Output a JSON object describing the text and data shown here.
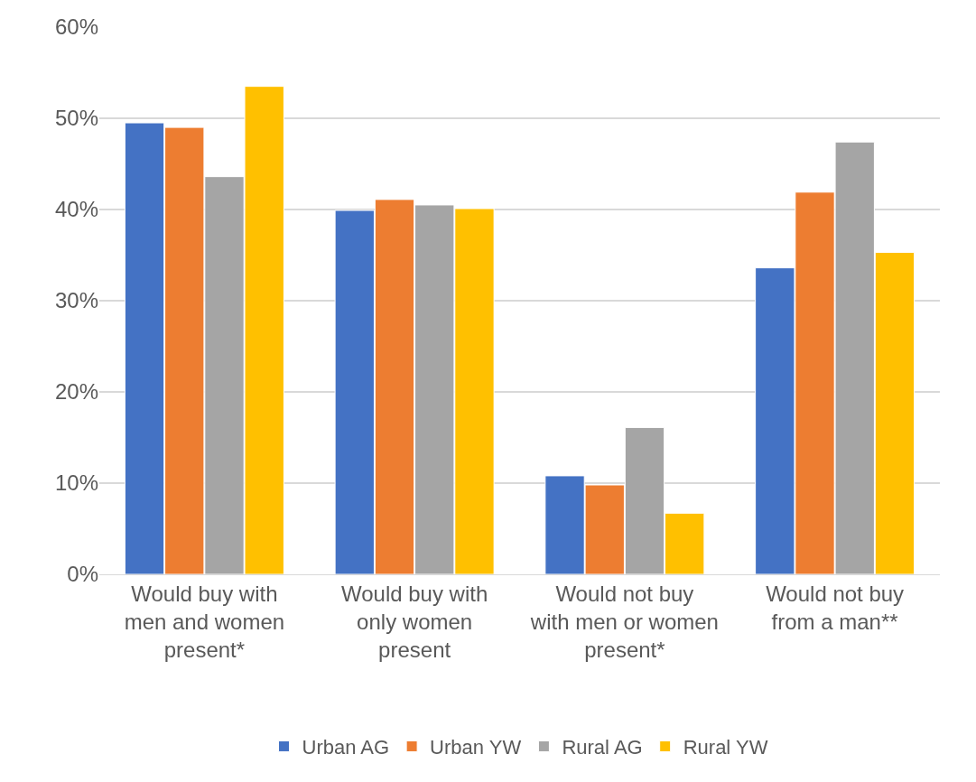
{
  "chart_data": {
    "type": "bar",
    "categories": [
      "Would buy with men and women present*",
      "Would buy with only women present",
      "Would not buy with men or women present*",
      "Would not buy from a man**"
    ],
    "series": [
      {
        "name": "Urban AG",
        "color": "#4472c4",
        "values": [
          49.5,
          39.9,
          10.8,
          33.6
        ]
      },
      {
        "name": "Urban YW",
        "color": "#ed7d31",
        "values": [
          49.0,
          41.1,
          9.8,
          41.9
        ]
      },
      {
        "name": "Rural AG",
        "color": "#a5a5a5",
        "values": [
          43.6,
          40.5,
          16.1,
          47.4
        ]
      },
      {
        "name": "Rural YW",
        "color": "#ffc000",
        "values": [
          53.5,
          40.1,
          6.7,
          35.3
        ]
      }
    ],
    "ylim": [
      0,
      60
    ],
    "yticks": [
      {
        "value": 0,
        "label": "0%"
      },
      {
        "value": 10,
        "label": "10%"
      },
      {
        "value": 20,
        "label": "20%"
      },
      {
        "value": 30,
        "label": "30%"
      },
      {
        "value": 40,
        "label": "40%"
      },
      {
        "value": 50,
        "label": "50%"
      },
      {
        "value": 60,
        "label": "60%"
      }
    ],
    "grid": "y",
    "legend": "bottom"
  }
}
